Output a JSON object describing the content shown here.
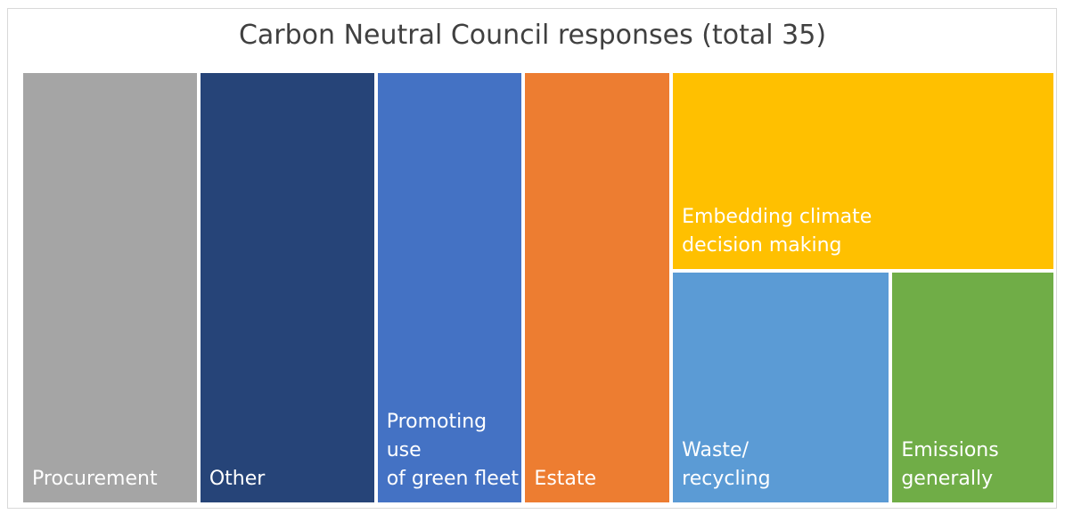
{
  "chart_data": {
    "type": "treemap",
    "title": "Carbon Neutral Council responses (total 35)",
    "total": 35,
    "series": [
      {
        "name": "Procurement",
        "label": "Procurement",
        "value": 6,
        "color": "#a5a5a5"
      },
      {
        "name": "Other",
        "label": "Other",
        "value": 6,
        "color": "#264478"
      },
      {
        "name": "Promoting use of green fleet",
        "label": "Promoting use\nof green fleet",
        "value": 5,
        "color": "#4472c4"
      },
      {
        "name": "Estate",
        "label": "Estate",
        "value": 5,
        "color": "#ed7d31"
      },
      {
        "name": "Embedding climate decision making",
        "label": "Embedding climate\ndecision making",
        "value": 6,
        "color": "#ffc000"
      },
      {
        "name": "Waste/ recycling",
        "label": "Waste/\nrecycling",
        "value": 4,
        "color": "#5b9bd5"
      },
      {
        "name": "Emissions generally",
        "label": "Emissions\ngenerally",
        "value": 3,
        "color": "#70ad47"
      }
    ]
  }
}
